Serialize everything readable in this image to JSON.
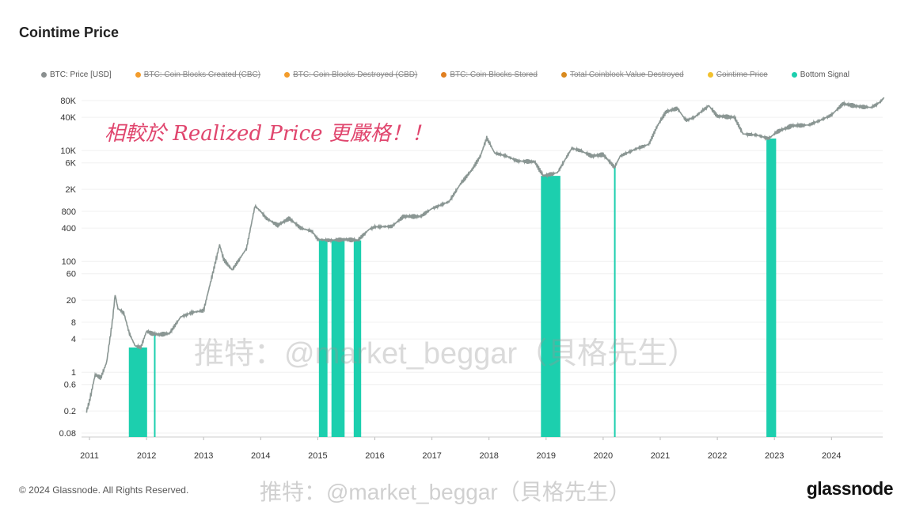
{
  "title": "Cointime Price",
  "legend": [
    {
      "label": "BTC: Price [USD]",
      "color": "#8a8f8f",
      "active": true
    },
    {
      "label": "BTC: Coin Blocks Created (CBC)",
      "color": "#f39c2b",
      "active": false
    },
    {
      "label": "BTC: Coin Blocks Destroyed (CBD)",
      "color": "#f39c2b",
      "active": false
    },
    {
      "label": "BTC: Coin Blocks Stored",
      "color": "#e07f20",
      "active": false
    },
    {
      "label": "Total Coinblock Value Destroyed",
      "color": "#d98a1e",
      "active": false
    },
    {
      "label": "Cointime Price",
      "color": "#f2c12e",
      "active": false
    },
    {
      "label": "Bottom Signal",
      "color": "#1ccfae",
      "active": true
    }
  ],
  "annotation": "相較於 Realized Price 更嚴格！！",
  "watermark": "推特：@market_beggar（貝格先生）",
  "footer": "© 2024 Glassnode. All Rights Reserved.",
  "logo": "glassnode",
  "chart_data": {
    "type": "line",
    "yscale": "log",
    "xlim": [
      2010.9,
      2024.95
    ],
    "ylim": [
      0.06,
      120000
    ],
    "grid": true,
    "x_ticks": [
      "2011",
      "2012",
      "2013",
      "2014",
      "2015",
      "2016",
      "2017",
      "2018",
      "2019",
      "2020",
      "2021",
      "2022",
      "2023",
      "2024"
    ],
    "y_ticks": [
      {
        "v": 80000,
        "l": "80K"
      },
      {
        "v": 40000,
        "l": "40K"
      },
      {
        "v": 10000,
        "l": "10K"
      },
      {
        "v": 6000,
        "l": "6K"
      },
      {
        "v": 2000,
        "l": "2K"
      },
      {
        "v": 800,
        "l": "800"
      },
      {
        "v": 400,
        "l": "400"
      },
      {
        "v": 100,
        "l": "100"
      },
      {
        "v": 60,
        "l": "60"
      },
      {
        "v": 20,
        "l": "20"
      },
      {
        "v": 8,
        "l": "8"
      },
      {
        "v": 4,
        "l": "4"
      },
      {
        "v": 1,
        "l": "1"
      },
      {
        "v": 0.6,
        "l": "0.6"
      },
      {
        "v": 0.2,
        "l": "0.2"
      },
      {
        "v": 0.08,
        "l": "0.08"
      }
    ],
    "series": [
      {
        "name": "BTC: Price [USD]",
        "color": "#8a9693",
        "points": [
          [
            2010.95,
            0.2
          ],
          [
            2011.0,
            0.3
          ],
          [
            2011.1,
            0.9
          ],
          [
            2011.2,
            0.8
          ],
          [
            2011.3,
            1.5
          ],
          [
            2011.4,
            8
          ],
          [
            2011.45,
            25
          ],
          [
            2011.5,
            14
          ],
          [
            2011.6,
            12
          ],
          [
            2011.7,
            5
          ],
          [
            2011.8,
            3
          ],
          [
            2011.9,
            2.8
          ],
          [
            2012.0,
            5.5
          ],
          [
            2012.1,
            5
          ],
          [
            2012.2,
            4.8
          ],
          [
            2012.4,
            5
          ],
          [
            2012.6,
            10
          ],
          [
            2012.8,
            12
          ],
          [
            2013.0,
            13
          ],
          [
            2013.2,
            90
          ],
          [
            2013.28,
            200
          ],
          [
            2013.35,
            110
          ],
          [
            2013.5,
            70
          ],
          [
            2013.6,
            100
          ],
          [
            2013.75,
            170
          ],
          [
            2013.9,
            1000
          ],
          [
            2014.0,
            800
          ],
          [
            2014.1,
            600
          ],
          [
            2014.3,
            450
          ],
          [
            2014.5,
            600
          ],
          [
            2014.7,
            400
          ],
          [
            2014.9,
            350
          ],
          [
            2015.0,
            250
          ],
          [
            2015.2,
            240
          ],
          [
            2015.5,
            250
          ],
          [
            2015.7,
            240
          ],
          [
            2015.9,
            380
          ],
          [
            2016.0,
            420
          ],
          [
            2016.3,
            430
          ],
          [
            2016.5,
            650
          ],
          [
            2016.8,
            650
          ],
          [
            2017.0,
            900
          ],
          [
            2017.3,
            1200
          ],
          [
            2017.5,
            2500
          ],
          [
            2017.7,
            4500
          ],
          [
            2017.85,
            8000
          ],
          [
            2017.96,
            17000
          ],
          [
            2018.1,
            9000
          ],
          [
            2018.3,
            8000
          ],
          [
            2018.5,
            6500
          ],
          [
            2018.8,
            6300
          ],
          [
            2018.95,
            3500
          ],
          [
            2019.2,
            4000
          ],
          [
            2019.45,
            11000
          ],
          [
            2019.6,
            10000
          ],
          [
            2019.8,
            8000
          ],
          [
            2020.0,
            8500
          ],
          [
            2020.2,
            5000
          ],
          [
            2020.3,
            8000
          ],
          [
            2020.6,
            11000
          ],
          [
            2020.8,
            13000
          ],
          [
            2020.95,
            28000
          ],
          [
            2021.1,
            50000
          ],
          [
            2021.3,
            58000
          ],
          [
            2021.45,
            35000
          ],
          [
            2021.6,
            40000
          ],
          [
            2021.85,
            65000
          ],
          [
            2022.0,
            42000
          ],
          [
            2022.3,
            40000
          ],
          [
            2022.45,
            20000
          ],
          [
            2022.7,
            19000
          ],
          [
            2022.9,
            16500
          ],
          [
            2023.05,
            22000
          ],
          [
            2023.3,
            28000
          ],
          [
            2023.6,
            29000
          ],
          [
            2023.8,
            35000
          ],
          [
            2024.0,
            44000
          ],
          [
            2024.2,
            70000
          ],
          [
            2024.5,
            62000
          ],
          [
            2024.7,
            60000
          ],
          [
            2024.85,
            75000
          ],
          [
            2024.92,
            90000
          ]
        ]
      }
    ],
    "bottom_signal": {
      "name": "Bottom Signal",
      "color": "#1ccfae",
      "ranges": [
        [
          2011.69,
          2012.01
        ],
        [
          2012.13,
          2012.15
        ],
        [
          2015.02,
          2015.17
        ],
        [
          2015.24,
          2015.47
        ],
        [
          2015.63,
          2015.76
        ],
        [
          2018.91,
          2019.25
        ],
        [
          2020.19,
          2020.21
        ],
        [
          2022.86,
          2023.03
        ]
      ]
    }
  }
}
